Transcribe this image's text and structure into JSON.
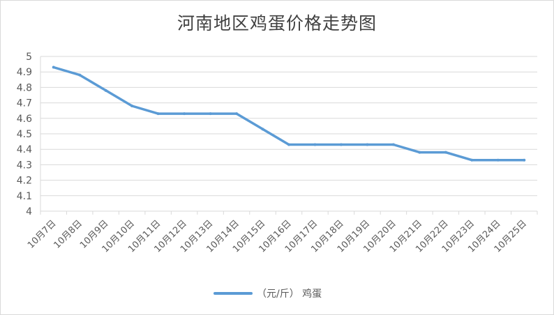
{
  "chart_data": {
    "type": "line",
    "title": "河南地区鸡蛋价格走势图",
    "categories": [
      "10月7日",
      "10月8日",
      "10月9日",
      "10月10日",
      "10月11日",
      "10月12日",
      "10月13日",
      "10月14日",
      "10月15日",
      "10月16日",
      "10月17日",
      "10月18日",
      "10月19日",
      "10月20日",
      "10月21日",
      "10月22日",
      "10月23日",
      "10月24日",
      "10月25日"
    ],
    "series": [
      {
        "name": "（元/斤） 鸡蛋",
        "values": [
          4.93,
          4.88,
          4.78,
          4.68,
          4.63,
          4.63,
          4.63,
          4.63,
          4.53,
          4.43,
          4.43,
          4.43,
          4.43,
          4.43,
          4.38,
          4.38,
          4.33,
          4.33,
          4.33
        ],
        "color": "#5b9bd5"
      }
    ],
    "yticks": [
      "4",
      "4.1",
      "4.2",
      "4.3",
      "4.4",
      "4.5",
      "4.6",
      "4.7",
      "4.8",
      "4.9",
      "5"
    ],
    "ylim": [
      4,
      5
    ],
    "grid": true,
    "legend_position": "bottom",
    "xlabel": "",
    "ylabel": ""
  },
  "colors": {
    "line": "#5b9bd5",
    "grid": "#d9d9d9",
    "text": "#595959",
    "title": "#404040"
  }
}
